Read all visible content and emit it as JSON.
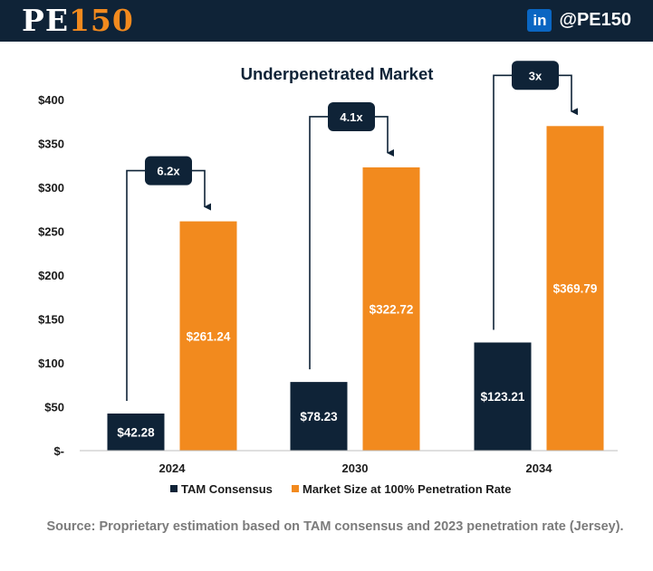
{
  "header": {
    "logo_prefix": "PE",
    "logo_number": "150",
    "linkedin_icon": "linkedin-icon",
    "linkedin_text": "in",
    "handle": "@PE150"
  },
  "colors": {
    "header_bg": "#0f2337",
    "navy": "#0f2337",
    "orange": "#f28a1e"
  },
  "chart_data": {
    "type": "bar",
    "title": "Underpenetrated Market",
    "categories": [
      "2024",
      "2030",
      "2034"
    ],
    "series": [
      {
        "name": "TAM Consensus",
        "color": "#0f2337",
        "values": [
          42.28,
          78.23,
          123.21
        ],
        "labels": [
          "$42.28",
          "$78.23",
          "$123.21"
        ]
      },
      {
        "name": "Market Size at 100% Penetration Rate",
        "color": "#f28a1e",
        "values": [
          261.24,
          322.72,
          369.79
        ],
        "labels": [
          "$261.24",
          "$322.72",
          "$369.79"
        ]
      }
    ],
    "ylim": [
      0,
      400
    ],
    "yticks": [
      0,
      50,
      100,
      150,
      200,
      250,
      300,
      350,
      400
    ],
    "ytick_labels": [
      "$-",
      "$50",
      "$100",
      "$150",
      "$200",
      "$250",
      "$300",
      "$350",
      "$400"
    ],
    "multiples": [
      "6.2x",
      "4.1x",
      "3x"
    ],
    "legend_position": "bottom",
    "grid": false,
    "xlabel": "",
    "ylabel": ""
  },
  "footer": {
    "source": "Source: Proprietary estimation based on TAM consensus and 2023 penetration rate (Jersey)."
  }
}
